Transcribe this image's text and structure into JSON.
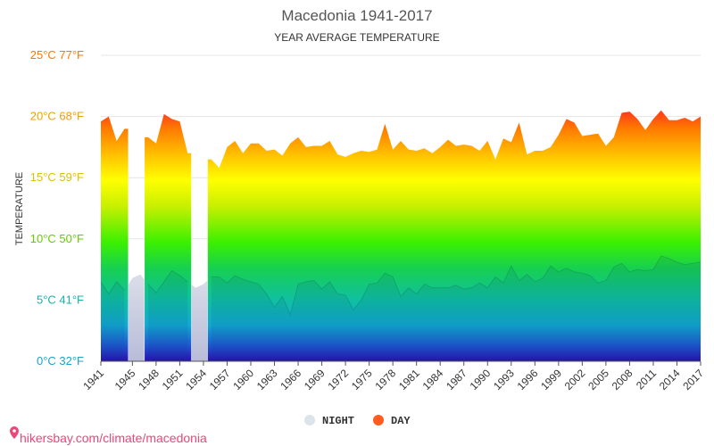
{
  "chart_data": {
    "type": "area",
    "title": "Macedonia 1941-2017",
    "subtitle": "YEAR AVERAGE TEMPERATURE",
    "ylabel": "TEMPERATURE",
    "ylim": [
      0,
      25
    ],
    "xlim": [
      1941,
      2017
    ],
    "y_ticks": [
      {
        "value": 0,
        "label": "0°C 32°F",
        "color": "#1aa3c8"
      },
      {
        "value": 5,
        "label": "5°C 41°F",
        "color": "#17b3a8"
      },
      {
        "value": 10,
        "label": "10°C 50°F",
        "color": "#66cc00"
      },
      {
        "value": 15,
        "label": "15°C 59°F",
        "color": "#e0c000"
      },
      {
        "value": 20,
        "label": "20°C 68°F",
        "color": "#f0a000"
      },
      {
        "value": 25,
        "label": "25°C 77°F",
        "color": "#ff7700"
      }
    ],
    "x_ticks": [
      1941,
      1945,
      1948,
      1951,
      1954,
      1957,
      1960,
      1963,
      1966,
      1969,
      1972,
      1975,
      1978,
      1981,
      1984,
      1987,
      1990,
      1993,
      1996,
      1999,
      2002,
      2005,
      2008,
      2011,
      2014,
      2017
    ],
    "missing_day_years": [
      1945,
      1946,
      1953,
      1954
    ],
    "grid": true,
    "legend_position": "bottom",
    "series": [
      {
        "name": "NIGHT",
        "color": "#dde3ea",
        "x": [
          1941,
          1942,
          1943,
          1944,
          1945,
          1946,
          1947,
          1948,
          1949,
          1950,
          1951,
          1952,
          1953,
          1954,
          1955,
          1956,
          1957,
          1958,
          1959,
          1960,
          1961,
          1962,
          1963,
          1964,
          1965,
          1966,
          1967,
          1968,
          1969,
          1970,
          1971,
          1972,
          1973,
          1974,
          1975,
          1976,
          1977,
          1978,
          1979,
          1980,
          1981,
          1982,
          1983,
          1984,
          1985,
          1986,
          1987,
          1988,
          1989,
          1990,
          1991,
          1992,
          1993,
          1994,
          1995,
          1996,
          1997,
          1998,
          1999,
          2000,
          2001,
          2002,
          2003,
          2004,
          2005,
          2006,
          2007,
          2008,
          2009,
          2010,
          2011,
          2012,
          2013,
          2014,
          2015,
          2016,
          2017
        ],
        "values": [
          6.5,
          5.5,
          6.5,
          5.8,
          6.8,
          7.1,
          6.3,
          5.6,
          6.5,
          7.4,
          7.0,
          6.5,
          6.0,
          6.3,
          6.9,
          6.9,
          6.4,
          7.0,
          6.7,
          6.5,
          6.3,
          5.5,
          4.4,
          5.3,
          3.8,
          6.3,
          6.5,
          6.6,
          5.9,
          6.5,
          5.5,
          5.4,
          4.2,
          5.0,
          6.3,
          6.4,
          7.2,
          6.9,
          5.3,
          6.0,
          5.5,
          6.3,
          6.0,
          6.0,
          6.0,
          6.2,
          5.9,
          6.0,
          6.4,
          6.0,
          6.9,
          6.4,
          7.8,
          6.6,
          7.1,
          6.5,
          6.8,
          7.8,
          7.3,
          7.6,
          7.3,
          7.2,
          7.0,
          6.4,
          6.6,
          7.7,
          8.0,
          7.3,
          7.5,
          7.4,
          7.5,
          8.6,
          8.4,
          8.1,
          7.9,
          8.0,
          8.1
        ]
      },
      {
        "name": "DAY",
        "color": "#ff5a1f",
        "x": [
          1941,
          1942,
          1943,
          1944,
          1945,
          1946,
          1947,
          1948,
          1949,
          1950,
          1951,
          1952,
          1953,
          1954,
          1955,
          1956,
          1957,
          1958,
          1959,
          1960,
          1961,
          1962,
          1963,
          1964,
          1965,
          1966,
          1967,
          1968,
          1969,
          1970,
          1971,
          1972,
          1973,
          1974,
          1975,
          1976,
          1977,
          1978,
          1979,
          1980,
          1981,
          1982,
          1983,
          1984,
          1985,
          1986,
          1987,
          1988,
          1989,
          1990,
          1991,
          1992,
          1993,
          1994,
          1995,
          1996,
          1997,
          1998,
          1999,
          2000,
          2001,
          2002,
          2003,
          2004,
          2005,
          2006,
          2007,
          2008,
          2009,
          2010,
          2011,
          2012,
          2013,
          2014,
          2015,
          2016,
          2017
        ],
        "values": [
          19.6,
          20.0,
          18.0,
          19.0,
          null,
          null,
          18.3,
          17.8,
          20.2,
          19.8,
          19.6,
          17.0,
          null,
          null,
          16.5,
          15.8,
          17.5,
          18.0,
          17.0,
          17.8,
          17.8,
          17.2,
          17.3,
          16.8,
          17.8,
          18.3,
          17.5,
          17.6,
          17.6,
          18.0,
          16.9,
          16.7,
          17.0,
          17.2,
          17.1,
          17.3,
          19.4,
          17.3,
          18.0,
          17.3,
          17.2,
          17.4,
          17.0,
          17.5,
          18.1,
          17.6,
          17.7,
          17.6,
          17.2,
          18.0,
          16.5,
          18.2,
          17.9,
          19.5,
          16.9,
          17.2,
          17.2,
          17.5,
          18.5,
          19.8,
          19.5,
          18.4,
          18.5,
          18.6,
          17.6,
          18.3,
          20.3,
          20.4,
          19.8,
          18.9,
          19.8,
          20.5,
          19.7,
          19.7,
          19.9,
          19.6,
          20.0
        ]
      }
    ]
  },
  "legend": {
    "night_label": "NIGHT",
    "day_label": "DAY",
    "night_color": "#dde3ea",
    "day_color": "#ff5a1f"
  },
  "watermark": {
    "text": "hikersbay.com/climate/macedonia",
    "icon": "map-pin-icon",
    "color": "#e8487a"
  }
}
